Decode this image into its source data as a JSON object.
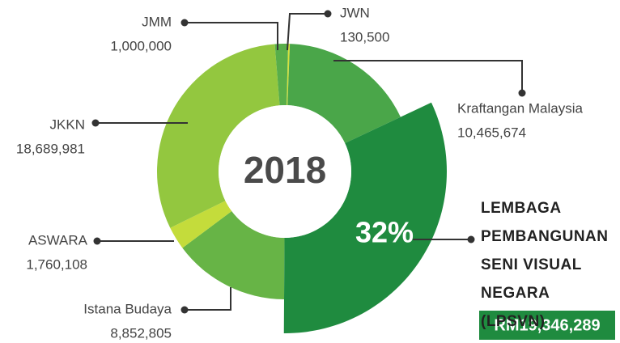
{
  "chart_data": {
    "type": "donut",
    "center_label": "2018",
    "highlight_label": "32%",
    "categories": [
      "JWN",
      "Kraftangan Malaysia",
      "LEMBAGA PEMBANGUNAN SENI VISUAL NEGARA (LPSVN)",
      "Istana Budaya",
      "ASWARA",
      "JKKN",
      "JMM"
    ],
    "values": [
      130500,
      10465674,
      19346289,
      8852805,
      1760108,
      18689981,
      1000000
    ],
    "value_labels": [
      "130,500",
      "10,465,674",
      "RM19,346,289",
      "8,852,805",
      "1,760,108",
      "18,689,981",
      "1,000,000"
    ],
    "colors": [
      "#d6e13c",
      "#4aa649",
      "#1f8b3f",
      "#67b446",
      "#c4dc3b",
      "#93c73f",
      "#58ae4a"
    ],
    "highlight": 2
  }
}
